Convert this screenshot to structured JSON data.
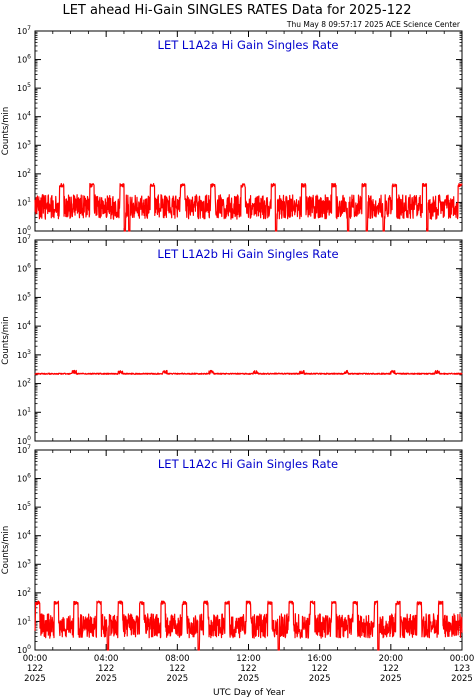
{
  "title": "LET ahead Hi-Gain SINGLES RATES Data for 2025-122",
  "timestamp": "Thu May  8 09:57:17 2025 ACE Science Center",
  "xlabel": "UTC Day of Year",
  "colors": {
    "trace": "#ff0000",
    "panel_title": "#0000cc",
    "axes": "#000000"
  },
  "chart_data": [
    {
      "type": "line",
      "title": "LET L1A2a Hi Gain Singles Rate",
      "ylabel": "Counts/min",
      "yscale": "log",
      "ylim": [
        1,
        10000000
      ],
      "baseline": 7,
      "noise": 0.85,
      "spike_value": 40,
      "spike_times": [
        1.5,
        3.2,
        4.9,
        6.6,
        8.3,
        10.0,
        11.7,
        13.4,
        15.1,
        16.8,
        18.5,
        20.2,
        21.9,
        23.9
      ],
      "dropouts": [
        5.05,
        5.3,
        13.55,
        17.6,
        18.65,
        19.6,
        22.05
      ],
      "series": [
        {
          "values": []
        }
      ]
    },
    {
      "type": "line",
      "title": "LET L1A2b Hi Gain Singles Rate",
      "ylabel": "Counts/min",
      "yscale": "log",
      "ylim": [
        1,
        10000000
      ],
      "baseline": 220,
      "noise": 0.04,
      "spike_value": 250,
      "spike_times": [
        2.2,
        4.8,
        7.3,
        9.9,
        12.4,
        15.0,
        17.5,
        20.1,
        22.6
      ],
      "dropouts": [],
      "series": [
        {
          "values": []
        }
      ]
    },
    {
      "type": "line",
      "title": "LET L1A2c Hi Gain Singles Rate",
      "ylabel": "Counts/min",
      "yscale": "log",
      "ylim": [
        1,
        10000000
      ],
      "baseline": 7,
      "noise": 0.85,
      "spike_value": 45,
      "spike_times": [
        0.15,
        1.2,
        2.3,
        3.6,
        4.8,
        6.0,
        7.2,
        8.4,
        9.6,
        10.8,
        12.0,
        13.2,
        14.4,
        15.6,
        16.8,
        18.0,
        19.2,
        20.4,
        21.6,
        22.8
      ],
      "dropouts": [
        4.1,
        9.2,
        13.7,
        19.3
      ],
      "series": [
        {
          "values": []
        }
      ]
    }
  ],
  "x_axis": {
    "range_hours": [
      0,
      24
    ],
    "ticks": [
      {
        "hour": 0,
        "time": "00:00",
        "doy": "122",
        "year": "2025"
      },
      {
        "hour": 4,
        "time": "04:00",
        "doy": "122",
        "year": "2025"
      },
      {
        "hour": 8,
        "time": "08:00",
        "doy": "122",
        "year": "2025"
      },
      {
        "hour": 12,
        "time": "12:00",
        "doy": "122",
        "year": "2025"
      },
      {
        "hour": 16,
        "time": "16:00",
        "doy": "122",
        "year": "2025"
      },
      {
        "hour": 20,
        "time": "20:00",
        "doy": "122",
        "year": "2025"
      },
      {
        "hour": 24,
        "time": "00:00",
        "doy": "123",
        "year": "2025"
      }
    ]
  },
  "y_ticks": [
    {
      "value": 1,
      "base": "10",
      "exp": "0"
    },
    {
      "value": 10,
      "base": "10",
      "exp": "1"
    },
    {
      "value": 100,
      "base": "10",
      "exp": "2"
    },
    {
      "value": 1000,
      "base": "10",
      "exp": "3"
    },
    {
      "value": 10000,
      "base": "10",
      "exp": "4"
    },
    {
      "value": 100000,
      "base": "10",
      "exp": "5"
    },
    {
      "value": 1000000,
      "base": "10",
      "exp": "6"
    },
    {
      "value": 10000000,
      "base": "10",
      "exp": "7"
    }
  ]
}
